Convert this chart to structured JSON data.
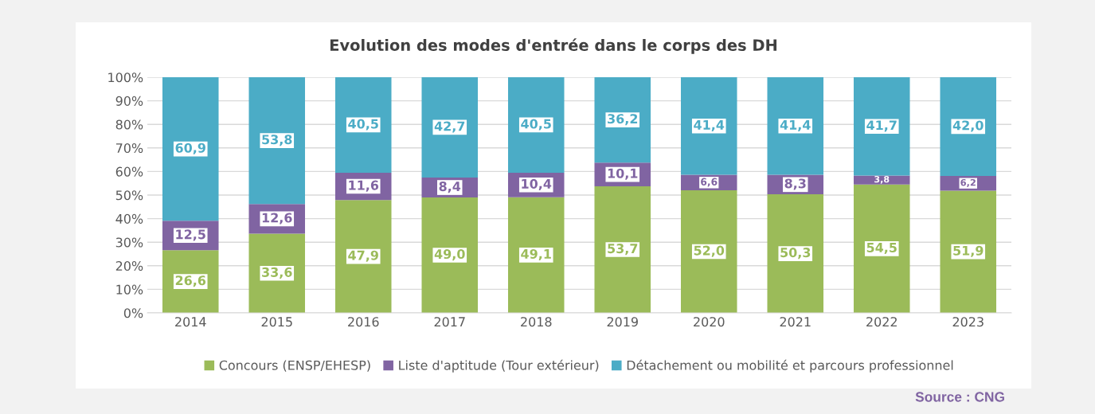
{
  "chart_data": {
    "type": "bar",
    "stacked": true,
    "title": "Evolution des modes d'entrée dans le corps des DH",
    "categories": [
      "2014",
      "2015",
      "2016",
      "2017",
      "2018",
      "2019",
      "2020",
      "2021",
      "2022",
      "2023"
    ],
    "series": [
      {
        "name": "Concours (ENSP/EHESP)",
        "color": "#9bbb59",
        "values": [
          26.6,
          33.6,
          47.9,
          49.0,
          49.1,
          53.7,
          52.0,
          50.3,
          54.5,
          51.9
        ],
        "value_labels": [
          "26,6",
          "33,6",
          "47,9",
          "49,0",
          "49,1",
          "53,7",
          "52,0",
          "50,3",
          "54,5",
          "51,9"
        ]
      },
      {
        "name": "Liste d'aptitude (Tour extérieur)",
        "color": "#8064a2",
        "values": [
          12.5,
          12.6,
          11.6,
          8.4,
          10.4,
          10.1,
          6.6,
          8.3,
          3.8,
          6.2
        ],
        "value_labels": [
          "12,5",
          "12,6",
          "11,6",
          "8,4",
          "10,4",
          "10,1",
          "6,6",
          "8,3",
          "3,8",
          "6,2"
        ]
      },
      {
        "name": "Détachement ou mobilité et parcours professionnel",
        "color": "#4bacc6",
        "values": [
          60.9,
          53.8,
          40.5,
          42.7,
          40.5,
          36.2,
          41.4,
          41.4,
          41.7,
          42.0
        ],
        "value_labels": [
          "60,9",
          "53,8",
          "40,5",
          "42,7",
          "40,5",
          "36,2",
          "41,4",
          "41,4",
          "41,7",
          "42,0"
        ]
      }
    ],
    "ylim": [
      0,
      100
    ],
    "yticks": [
      {
        "value": 0,
        "label": "0%"
      },
      {
        "value": 10,
        "label": "10%"
      },
      {
        "value": 20,
        "label": "20%"
      },
      {
        "value": 30,
        "label": "30%"
      },
      {
        "value": 40,
        "label": "40%"
      },
      {
        "value": 50,
        "label": "50%"
      },
      {
        "value": 60,
        "label": "60%"
      },
      {
        "value": 70,
        "label": "70%"
      },
      {
        "value": 80,
        "label": "80%"
      },
      {
        "value": 90,
        "label": "90%"
      },
      {
        "value": 100,
        "label": "100%"
      }
    ],
    "grid": "y",
    "legend": "bottom",
    "annotations": [
      "Source : CNG"
    ]
  }
}
